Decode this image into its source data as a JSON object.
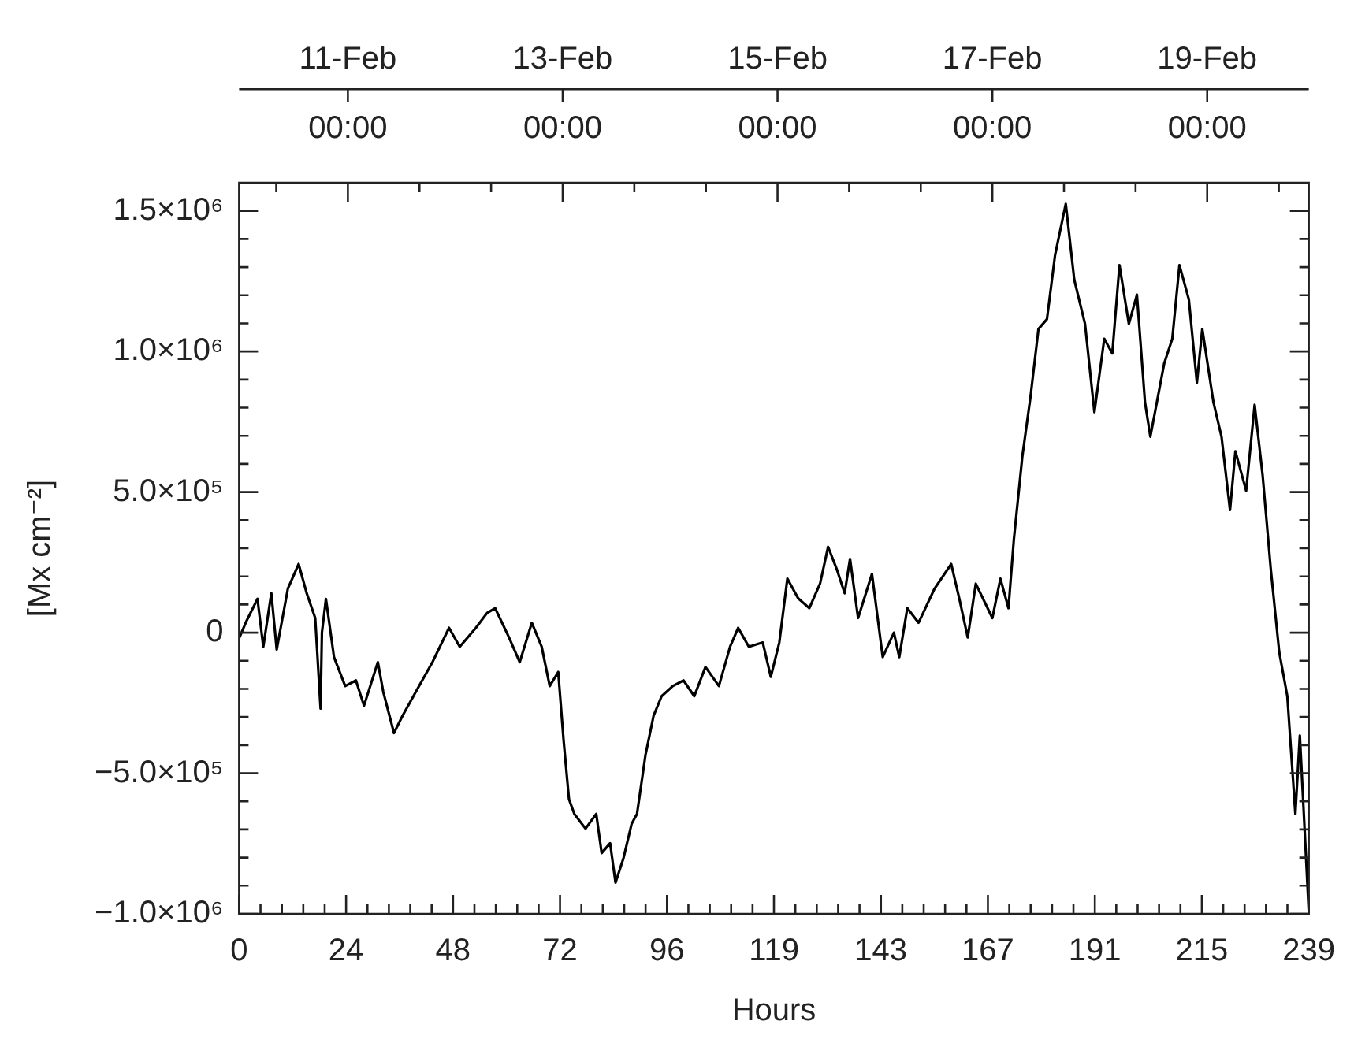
{
  "chart_data": {
    "type": "line",
    "xlabel": "Hours",
    "ylabel": "[Mx cm⁻²]",
    "xlim": [
      0,
      239
    ],
    "ylim": [
      -1000000,
      1600000
    ],
    "x2lim": [
      "--02-09T23:42",
      "--02-19T22:42"
    ],
    "xticks": [
      0,
      {
        "value": 4.78,
        "label": null
      },
      {
        "value": 9.56,
        "label": null
      },
      {
        "value": 14.34,
        "label": null
      },
      {
        "value": 19.12,
        "label": null
      },
      {
        "value": 23.9,
        "label": "24"
      },
      {
        "value": 28.68,
        "label": null
      },
      {
        "value": 33.46,
        "label": null
      },
      {
        "value": 38.24,
        "label": null
      },
      {
        "value": 43.02,
        "label": null
      },
      {
        "value": 47.8,
        "label": "48"
      },
      {
        "value": 52.58,
        "label": null
      },
      {
        "value": 57.36,
        "label": null
      },
      {
        "value": 62.14,
        "label": null
      },
      {
        "value": 66.92,
        "label": null
      },
      {
        "value": 71.7,
        "label": "72"
      },
      {
        "value": 76.48,
        "label": null
      },
      {
        "value": 81.26,
        "label": null
      },
      {
        "value": 86.04,
        "label": null
      },
      {
        "value": 90.82,
        "label": null
      },
      {
        "value": 95.6,
        "label": "96"
      },
      {
        "value": 100.38,
        "label": null
      },
      {
        "value": 105.16,
        "label": null
      },
      {
        "value": 109.94,
        "label": null
      },
      {
        "value": 114.72,
        "label": null
      },
      {
        "value": 119.5,
        "label": "119"
      },
      {
        "value": 124.28,
        "label": null
      },
      {
        "value": 129.06,
        "label": null
      },
      {
        "value": 133.84,
        "label": null
      },
      {
        "value": 138.62,
        "label": null
      },
      {
        "value": 143.4,
        "label": "143"
      },
      {
        "value": 148.18,
        "label": null
      },
      {
        "value": 152.96,
        "label": null
      },
      {
        "value": 157.74,
        "label": null
      },
      {
        "value": 162.52,
        "label": null
      },
      {
        "value": 167.3,
        "label": "167"
      },
      {
        "value": 172.08,
        "label": null
      },
      {
        "value": 176.86,
        "label": null
      },
      {
        "value": 181.64,
        "label": null
      },
      {
        "value": 186.42,
        "label": null
      },
      {
        "value": 191.2,
        "label": "191"
      },
      {
        "value": 195.98,
        "label": null
      },
      {
        "value": 200.76,
        "label": null
      },
      {
        "value": 205.54,
        "label": null
      },
      {
        "value": 210.32,
        "label": null
      },
      {
        "value": 215.1,
        "label": "215"
      },
      {
        "value": 219.88,
        "label": null
      },
      {
        "value": 224.66,
        "label": null
      },
      {
        "value": 229.44,
        "label": null
      },
      {
        "value": 234.22,
        "label": null
      },
      239
    ],
    "x2ticks": [
      {
        "value": "--02-10T08:00",
        "label": null
      },
      {
        "value": "--02-11T00:00",
        "label": "11-Feb\n00:00"
      },
      {
        "value": "--02-11T16:00",
        "label": null
      },
      {
        "value": "--02-12T08:00",
        "label": null
      },
      {
        "value": "--02-13T00:00",
        "label": "13-Feb\n00:00"
      },
      {
        "value": "--02-13T16:00",
        "label": null
      },
      {
        "value": "--02-14T08:00",
        "label": null
      },
      {
        "value": "--02-15T00:00",
        "label": "15-Feb\n00:00"
      },
      {
        "value": "--02-15T16:00",
        "label": null
      },
      {
        "value": "--02-16T08:00",
        "label": null
      },
      {
        "value": "--02-17T00:00",
        "label": "17-Feb\n00:00"
      },
      {
        "value": "--02-17T16:00",
        "label": null
      },
      {
        "value": "--02-18T08:00",
        "label": null
      },
      {
        "value": "--02-19T00:00",
        "label": "19-Feb\n00:00"
      },
      {
        "value": "--02-19T16:00",
        "label": null
      }
    ],
    "yticks": [
      {
        "value": -1000000,
        "label": "−1.0×10⁶"
      },
      {
        "value": -900000,
        "label": null
      },
      {
        "value": -800000,
        "label": null
      },
      {
        "value": -700000,
        "label": null
      },
      {
        "value": -600000,
        "label": null
      },
      {
        "value": -500000,
        "label": "−5.0×10⁵"
      },
      {
        "value": -400000,
        "label": null
      },
      {
        "value": -300000,
        "label": null
      },
      {
        "value": -200000,
        "label": null
      },
      {
        "value": -100000,
        "label": null
      },
      0,
      {
        "value": 100000,
        "label": null
      },
      {
        "value": 200000,
        "label": null
      },
      {
        "value": 300000,
        "label": null
      },
      {
        "value": 400000,
        "label": null
      },
      {
        "value": 500000,
        "label": "5.0×10⁵"
      },
      {
        "value": 600000,
        "label": null
      },
      {
        "value": 700000,
        "label": null
      },
      {
        "value": 800000,
        "label": null
      },
      {
        "value": 900000,
        "label": null
      },
      {
        "value": 1000000,
        "label": "1.0×10⁶"
      },
      {
        "value": 1100000,
        "label": null
      },
      {
        "value": 1200000,
        "label": null
      },
      {
        "value": 1300000,
        "label": null
      },
      {
        "value": 1400000,
        "label": null
      },
      {
        "value": 1500000,
        "label": "1.5×10⁶"
      }
    ],
    "series": [
      {
        "color": "#000000",
        "x": [
          0,
          1.7,
          4.1,
          5.4,
          7.2,
          8.4,
          10.9,
          13.3,
          15.1,
          17,
          18.2,
          18.5,
          19.4,
          21.2,
          23.7,
          26.1,
          27.9,
          31,
          32.2,
          34.6,
          36.5,
          39.5,
          43.2,
          46.9,
          49.3,
          52.9,
          55.4,
          57.2,
          60.3,
          62.7,
          65.4,
          67.6,
          69.4,
          71.3,
          72.5,
          73.7,
          74.9,
          77.4,
          79.8,
          81,
          82.9,
          84.1,
          85.9,
          87.7,
          88.9,
          90.8,
          92.6,
          94.4,
          96.9,
          99.3,
          101.7,
          104.2,
          107.2,
          109.7,
          111.5,
          113.9,
          117,
          118.8,
          120.7,
          122.5,
          124.9,
          127.4,
          129.8,
          131.6,
          133.5,
          135.3,
          136.5,
          138.3,
          141.4,
          143.8,
          146.3,
          147.5,
          149.3,
          151.8,
          155.4,
          159.1,
          160.9,
          162.8,
          164.6,
          168.3,
          170.1,
          171.9,
          173.1,
          175,
          176.8,
          178.6,
          180.5,
          182.3,
          184.7,
          186.6,
          189,
          191.1,
          193.3,
          195.1,
          196.7,
          198.8,
          200.6,
          202.4,
          203.6,
          206.7,
          208.5,
          210.1,
          212.2,
          214,
          215.2,
          217.7,
          219.5,
          221.4,
          222.6,
          225,
          226.9,
          228.7,
          230.5,
          232.4,
          234.2,
          236,
          237,
          238.5,
          239
        ],
        "values": [
          -20000,
          43000,
          120000,
          -50000,
          140000,
          -60000,
          157000,
          244000,
          140000,
          52000,
          -270000,
          0,
          120000,
          -87000,
          -190000,
          -170000,
          -260000,
          -105000,
          -210000,
          -357000,
          -296000,
          -210000,
          -105000,
          17000,
          -50000,
          17000,
          70000,
          87000,
          -17000,
          -105000,
          35000,
          -50000,
          -190000,
          -140000,
          -383000,
          -592000,
          -645000,
          -697000,
          -645000,
          -784000,
          -749000,
          -889000,
          -801000,
          -680000,
          -645000,
          -435000,
          -296000,
          -226000,
          -190000,
          -170000,
          -226000,
          -122000,
          -190000,
          -50000,
          17000,
          -50000,
          -35000,
          -157000,
          -35000,
          192000,
          122000,
          87000,
          174000,
          305000,
          227000,
          140000,
          262000,
          52000,
          209000,
          -87000,
          0,
          -87000,
          87000,
          35000,
          157000,
          244000,
          122000,
          -17000,
          174000,
          52000,
          192000,
          87000,
          331000,
          627000,
          836000,
          1080000,
          1115000,
          1342000,
          1525000,
          1255000,
          1098000,
          784000,
          1045000,
          993000,
          1307000,
          1098000,
          1202000,
          819000,
          697000,
          958000,
          1045000,
          1307000,
          1185000,
          889000,
          1080000,
          819000,
          697000,
          436000,
          645000,
          505000,
          810000,
          557000,
          227000,
          -70000,
          -226000,
          -645000,
          -366000,
          -836000,
          -993000
        ]
      }
    ]
  }
}
